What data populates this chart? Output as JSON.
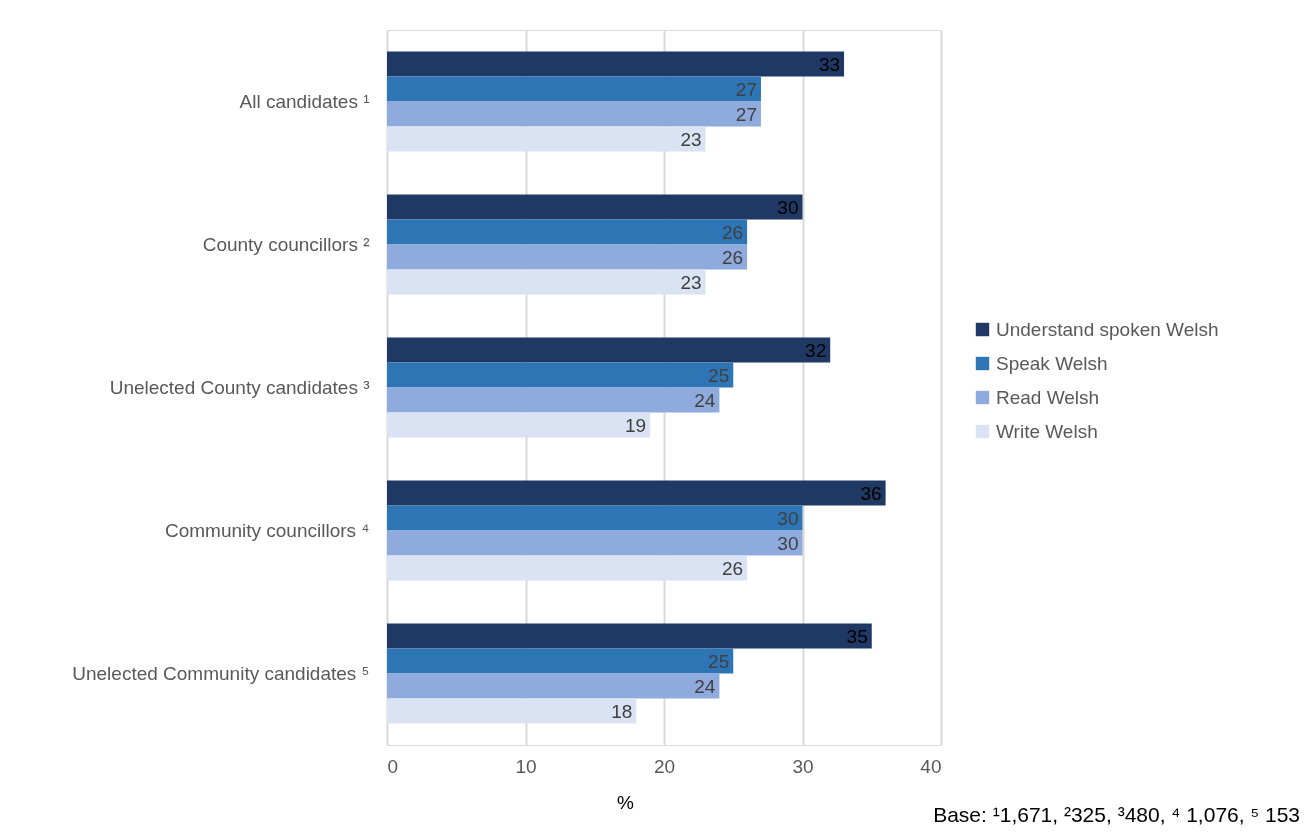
{
  "chart_data": {
    "type": "bar",
    "orientation": "horizontal",
    "xlabel": "%",
    "categories": [
      "All candidates ¹",
      "County councillors ²",
      "Unelected County candidates ³",
      "Community councillors ⁴",
      "Unelected Community candidates ⁵"
    ],
    "series": [
      {
        "name": "Understand spoken Welsh",
        "color": "#203864",
        "values": [
          33,
          30,
          32,
          36,
          35
        ]
      },
      {
        "name": "Speak Welsh",
        "color": "#2e75b6",
        "values": [
          27,
          26,
          25,
          30,
          25
        ]
      },
      {
        "name": "Read Welsh",
        "color": "#8faadc",
        "values": [
          27,
          26,
          24,
          30,
          24
        ]
      },
      {
        "name": "Write Welsh",
        "color": "#dae3f3",
        "values": [
          23,
          23,
          19,
          26,
          18
        ]
      }
    ],
    "xlim": [
      0,
      40
    ],
    "xticks": [
      0,
      10,
      20,
      30,
      40
    ],
    "grid": "x",
    "legend": "right",
    "data_labels": true,
    "annotations": [
      "Base: ¹1,671, ²325, ³480, ⁴ 1,076, ⁵ 153"
    ]
  }
}
